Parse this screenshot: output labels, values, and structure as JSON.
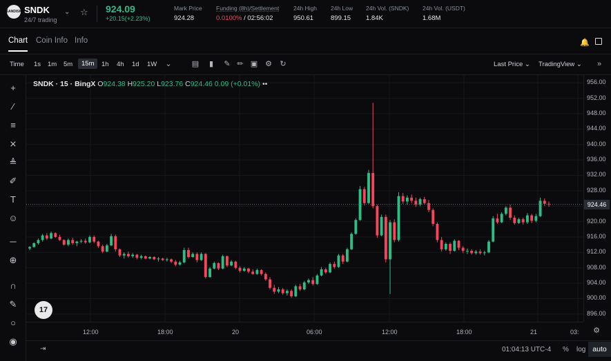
{
  "header": {
    "symbol": "SNDK",
    "symbol_sub": "24/7 trading",
    "logo_text": "SANDISK",
    "last_price": "924.09",
    "change": "+20.15(+2.23%)",
    "stats": [
      {
        "label": "Mark Price",
        "value": "924.28"
      },
      {
        "label": "Funding (8h)/Settlement",
        "value_red": "0.0100%",
        "value": " / 02:56:02"
      },
      {
        "label": "24h High",
        "value": "950.61"
      },
      {
        "label": "24h Low",
        "value": "899.15"
      },
      {
        "label": "24h Vol. (SNDK)",
        "value": "1.84K"
      },
      {
        "label": "24h Vol. (USDT)",
        "value": "1.68M"
      }
    ]
  },
  "tabs": [
    "Chart",
    "Coin Info",
    "Info"
  ],
  "toolbar": {
    "timeframes": [
      "Time",
      "1s",
      "1m",
      "5m",
      "15m",
      "1h",
      "4h",
      "1d",
      "1W"
    ],
    "active_timeframe": "15m",
    "price_type": "Last Price",
    "chart_mode": "TradingView"
  },
  "legend": {
    "name": "SNDK · 15 · BingX",
    "o_label": "O",
    "o": "924.38",
    "h_label": "H",
    "h": "925.20",
    "l_label": "L",
    "l": "923.76",
    "c_label": "C",
    "c": "924.46",
    "chg": "0.09 (+0.01%)"
  },
  "axis": {
    "y_ticks": [
      "956.00",
      "952.00",
      "948.00",
      "944.00",
      "940.00",
      "936.00",
      "932.00",
      "928.00",
      "924.00",
      "920.00",
      "916.00",
      "912.00",
      "908.00",
      "904.00",
      "900.00",
      "896.00"
    ],
    "last_price_tag": "924.46",
    "x_ticks": [
      "12:00",
      "18:00",
      "20",
      "06:00",
      "12:00",
      "18:00",
      "21",
      "03:"
    ]
  },
  "bottom": {
    "clock": "01:04:13 UTC-4",
    "percent": "%",
    "log": "log",
    "auto": "auto"
  },
  "colors": {
    "up": "#2ebd85",
    "down": "#f6465d",
    "background": "#0b0b0e"
  },
  "chart_data": {
    "type": "candlestick",
    "ylim": [
      894,
      958
    ],
    "candles": [
      [
        913,
        913.6,
        912.6,
        913.4
      ],
      [
        913.4,
        914.6,
        913.2,
        914.4
      ],
      [
        914.4,
        915.6,
        914,
        915.2
      ],
      [
        915.2,
        916.8,
        914.8,
        916.4
      ],
      [
        916.4,
        917,
        915.2,
        915.6
      ],
      [
        915.6,
        917.4,
        915.4,
        917
      ],
      [
        917,
        917.2,
        915.8,
        916
      ],
      [
        916,
        916.6,
        915,
        915.2
      ],
      [
        915.2,
        915.4,
        913.8,
        914
      ],
      [
        914,
        915.6,
        913.6,
        915.2
      ],
      [
        915.2,
        915.8,
        914,
        914.4
      ],
      [
        914.4,
        915,
        913.6,
        914.8
      ],
      [
        914.8,
        915.4,
        914.4,
        915
      ],
      [
        915,
        915.6,
        914.2,
        914.6
      ],
      [
        914.6,
        916.4,
        914.4,
        916
      ],
      [
        916,
        916.4,
        914.4,
        914.8
      ],
      [
        914.8,
        915,
        913.2,
        913.6
      ],
      [
        913.6,
        914,
        911.8,
        912.2
      ],
      [
        912.2,
        914.2,
        912,
        913.8
      ],
      [
        913.8,
        916.8,
        913.6,
        916.2
      ],
      [
        916.2,
        916.6,
        912.2,
        912.8
      ],
      [
        912.8,
        913,
        910.8,
        911.2
      ],
      [
        911.2,
        912,
        910.4,
        911.6
      ],
      [
        911.6,
        912.2,
        910.6,
        911
      ],
      [
        911,
        911.8,
        910.6,
        911.4
      ],
      [
        911.4,
        911.6,
        910.2,
        910.6
      ],
      [
        910.6,
        911.4,
        910.2,
        911
      ],
      [
        911,
        911.2,
        910.2,
        910.4
      ],
      [
        910.4,
        911,
        910.2,
        910.8
      ],
      [
        910.8,
        911,
        910,
        910.2
      ],
      [
        910.2,
        910.8,
        909.6,
        910.4
      ],
      [
        910.4,
        910.6,
        909.8,
        910
      ],
      [
        910,
        910.6,
        909.6,
        910.2
      ],
      [
        910.2,
        910.4,
        909.2,
        909.6
      ],
      [
        909.6,
        910,
        908.4,
        908.8
      ],
      [
        908.8,
        909.8,
        908.6,
        909.4
      ],
      [
        909.4,
        913.2,
        909.2,
        912.6
      ],
      [
        912.6,
        913.2,
        910.4,
        910.8
      ],
      [
        910.8,
        912,
        910.6,
        911.6
      ],
      [
        911.6,
        912,
        909.4,
        910
      ],
      [
        910,
        912,
        909.8,
        911.6
      ],
      [
        911.6,
        911.8,
        905.2,
        905.6
      ],
      [
        905.6,
        908.2,
        905.4,
        907.8
      ],
      [
        907.8,
        909.6,
        907.6,
        909.2
      ],
      [
        909.2,
        909.4,
        907.4,
        907.8
      ],
      [
        907.8,
        911.4,
        907.6,
        911
      ],
      [
        911,
        911.2,
        908.2,
        908.6
      ],
      [
        908.6,
        910,
        908.4,
        909.6
      ],
      [
        909.6,
        909.8,
        907.6,
        908
      ],
      [
        908,
        908.4,
        906.8,
        907.2
      ],
      [
        907.2,
        908.2,
        907,
        907.8
      ],
      [
        907.8,
        908,
        906.6,
        907
      ],
      [
        907,
        907.6,
        906.2,
        906.4
      ],
      [
        906.4,
        907.8,
        906.2,
        907.4
      ],
      [
        907.4,
        907.6,
        906,
        906.4
      ],
      [
        906.4,
        906.8,
        904.6,
        905
      ],
      [
        905,
        905.6,
        902.4,
        902.8
      ],
      [
        902.8,
        903.6,
        901.2,
        901.8
      ],
      [
        901.8,
        903,
        901.4,
        902.4
      ],
      [
        902.4,
        902.8,
        901,
        901.4
      ],
      [
        901.4,
        902.4,
        900.8,
        902
      ],
      [
        902,
        902.4,
        900.2,
        900.6
      ],
      [
        900.6,
        903.6,
        900.4,
        903.2
      ],
      [
        903.2,
        903.8,
        902,
        902.4
      ],
      [
        902.4,
        904.6,
        902.2,
        904.2
      ],
      [
        904.2,
        905.2,
        903.8,
        904.8
      ],
      [
        904.8,
        905.6,
        903.4,
        903.8
      ],
      [
        903.8,
        906.4,
        903.6,
        906
      ],
      [
        906,
        908.2,
        905.8,
        907.6
      ],
      [
        907.6,
        908,
        906.4,
        906.8
      ],
      [
        906.8,
        909.4,
        906.6,
        909
      ],
      [
        909,
        909.6,
        907.8,
        908.2
      ],
      [
        908.2,
        911.6,
        908,
        911.2
      ],
      [
        911.2,
        911.6,
        909,
        909.6
      ],
      [
        909.6,
        913.2,
        909.4,
        912.8
      ],
      [
        912.8,
        917.2,
        912.6,
        916.8
      ],
      [
        916.8,
        920.8,
        916.6,
        920.4
      ],
      [
        920.4,
        929.2,
        920.2,
        928.4
      ],
      [
        928.4,
        929,
        924.2,
        924.8
      ],
      [
        924.8,
        933.4,
        924.6,
        932.6
      ],
      [
        932.6,
        950.8,
        923.4,
        924
      ],
      [
        924,
        924.4,
        915.8,
        916.4
      ],
      [
        916.4,
        921.8,
        916.2,
        921.2
      ],
      [
        921.2,
        921.8,
        909.4,
        910.2
      ],
      [
        910.2,
        920.4,
        901.2,
        919.8
      ],
      [
        919.8,
        920.6,
        914.6,
        915.2
      ],
      [
        915.2,
        927.6,
        914.8,
        926.6
      ],
      [
        926.6,
        927.4,
        924.6,
        925.2
      ],
      [
        925.2,
        926.8,
        924.4,
        926.2
      ],
      [
        926.2,
        927,
        924.8,
        925.4
      ],
      [
        925.4,
        926.2,
        923.8,
        924.4
      ],
      [
        924.4,
        926.2,
        924,
        925.8
      ],
      [
        925.8,
        926.4,
        924.4,
        924.8
      ],
      [
        924.8,
        925.6,
        922.4,
        923
      ],
      [
        923,
        923.4,
        918.8,
        919.4
      ],
      [
        919.4,
        919.8,
        914.6,
        915.2
      ],
      [
        915.2,
        916,
        912.2,
        912.8
      ],
      [
        912.8,
        914.6,
        912.4,
        914.2
      ],
      [
        914.2,
        914.6,
        911.6,
        912.4
      ],
      [
        912.4,
        915.4,
        912.2,
        915
      ],
      [
        915,
        915.2,
        912.6,
        913.2
      ],
      [
        913.2,
        913.6,
        911.8,
        912.4
      ],
      [
        912.4,
        913,
        911.6,
        912.4
      ],
      [
        912.4,
        912.8,
        911.4,
        911.8
      ],
      [
        911.8,
        912.6,
        911.4,
        912.2
      ],
      [
        912.2,
        912.8,
        911.4,
        911.8
      ],
      [
        911.8,
        912.4,
        911.2,
        912
      ],
      [
        912,
        915.2,
        911.8,
        914.8
      ],
      [
        914.8,
        921.4,
        914.6,
        920.8
      ],
      [
        920.8,
        922,
        919.4,
        919.8
      ],
      [
        919.8,
        922.4,
        919.6,
        922
      ],
      [
        922,
        924,
        921.6,
        923.6
      ],
      [
        923.6,
        924.4,
        920.4,
        921
      ],
      [
        921,
        921.6,
        919.2,
        919.6
      ],
      [
        919.6,
        921,
        919.4,
        920.6
      ],
      [
        920.6,
        921,
        919.2,
        919.8
      ],
      [
        919.8,
        922.2,
        919.4,
        921.6
      ],
      [
        921.6,
        922,
        919.6,
        920.2
      ],
      [
        920.2,
        922,
        919.8,
        921.4
      ],
      [
        921.4,
        926.2,
        921.2,
        925.4
      ],
      [
        925.4,
        926,
        924,
        924.6
      ],
      [
        924.6,
        925.2,
        923.8,
        924.46
      ]
    ]
  }
}
